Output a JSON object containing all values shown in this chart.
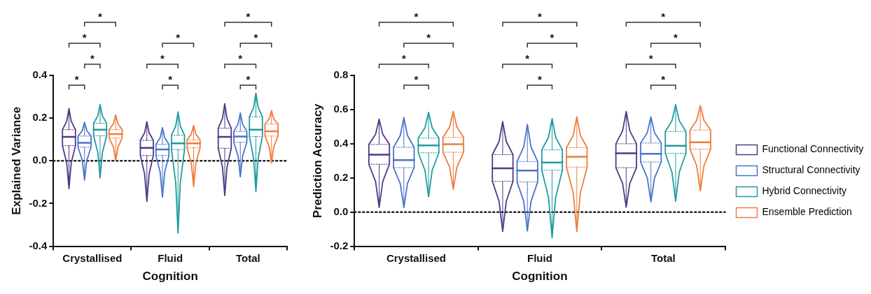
{
  "chart_data": [
    {
      "type": "box",
      "xlabel": "Cognition",
      "ylabel": "Explained Variance",
      "categories": [
        "Crystallised",
        "Fluid",
        "Total"
      ],
      "ylim": [
        -0.4,
        0.4
      ],
      "yticks": [
        {
          "value": -0.4,
          "label": "-0.4"
        },
        {
          "value": -0.2,
          "label": "-0.2"
        },
        {
          "value": 0,
          "label": "0.0"
        },
        {
          "value": 0.2,
          "label": "0.2"
        },
        {
          "value": 0.4,
          "label": "0.4"
        }
      ],
      "ref_lines": [
        {
          "axis": "y",
          "value": 0,
          "line_style": "dotted"
        }
      ],
      "series": [
        {
          "color": "#4f3a86",
          "boxes": [
            {
              "low": -0.13,
              "q1": 0.071,
              "median": 0.112,
              "q3": 0.146,
              "high": 0.245
            },
            {
              "low": -0.19,
              "q1": 0.025,
              "median": 0.061,
              "q3": 0.096,
              "high": 0.183
            },
            {
              "low": -0.162,
              "q1": 0.059,
              "median": 0.112,
              "q3": 0.153,
              "high": 0.267
            }
          ]
        },
        {
          "color": "#4a74c9",
          "boxes": [
            {
              "low": -0.09,
              "q1": 0.064,
              "median": 0.084,
              "q3": 0.116,
              "high": 0.18
            },
            {
              "low": -0.17,
              "q1": 0.025,
              "median": 0.053,
              "q3": 0.077,
              "high": 0.155
            },
            {
              "low": -0.075,
              "q1": 0.087,
              "median": 0.114,
              "q3": 0.138,
              "high": 0.224
            }
          ]
        },
        {
          "color": "#1f9b9e",
          "boxes": [
            {
              "low": -0.08,
              "q1": 0.117,
              "median": 0.146,
              "q3": 0.176,
              "high": 0.263
            },
            {
              "low": -0.338,
              "q1": 0.053,
              "median": 0.082,
              "q3": 0.12,
              "high": 0.229
            },
            {
              "low": -0.144,
              "q1": 0.114,
              "median": 0.146,
              "q3": 0.206,
              "high": 0.317
            }
          ]
        },
        {
          "color": "#f07c3c",
          "boxes": [
            {
              "low": 0.0,
              "q1": 0.107,
              "median": 0.125,
              "q3": 0.146,
              "high": 0.215
            },
            {
              "low": -0.12,
              "q1": 0.061,
              "median": 0.082,
              "q3": 0.098,
              "high": 0.165
            },
            {
              "low": -0.01,
              "q1": 0.116,
              "median": 0.138,
              "q3": 0.172,
              "high": 0.235
            }
          ]
        }
      ],
      "annotations": [
        "*",
        "*",
        "*",
        "*",
        "*",
        "*",
        "*",
        "*",
        "*",
        "*",
        "*"
      ]
    },
    {
      "type": "box",
      "xlabel": "Cognition",
      "ylabel": "Prediction Accuracy",
      "categories": [
        "Crystallised",
        "Fluid",
        "Total"
      ],
      "legend": "right",
      "ylim": [
        -0.2,
        0.8
      ],
      "yticks": [
        {
          "value": -0.2,
          "label": "-0.2"
        },
        {
          "value": 0,
          "label": "0.0"
        },
        {
          "value": 0.2,
          "label": "0.2"
        },
        {
          "value": 0.4,
          "label": "0.4"
        },
        {
          "value": 0.6,
          "label": "0.6"
        },
        {
          "value": 0.8,
          "label": "0.8"
        }
      ],
      "ref_lines": [
        {
          "axis": "y",
          "value": 0,
          "line_style": "dotted"
        }
      ],
      "series": [
        {
          "name": "Functional Connectivity",
          "color": "#4f3a86",
          "boxes": [
            {
              "low": 0.027,
              "q1": 0.28,
              "median": 0.336,
              "q3": 0.396,
              "high": 0.544
            },
            {
              "low": -0.113,
              "q1": 0.18,
              "median": 0.256,
              "q3": 0.336,
              "high": 0.53
            },
            {
              "low": 0.029,
              "q1": 0.26,
              "median": 0.344,
              "q3": 0.4,
              "high": 0.589
            }
          ]
        },
        {
          "name": "Structural Connectivity",
          "color": "#4a74c9",
          "boxes": [
            {
              "low": 0.027,
              "q1": 0.26,
              "median": 0.304,
              "q3": 0.379,
              "high": 0.553
            },
            {
              "low": -0.11,
              "q1": 0.176,
              "median": 0.243,
              "q3": 0.296,
              "high": 0.513
            },
            {
              "low": 0.06,
              "q1": 0.293,
              "median": 0.341,
              "q3": 0.404,
              "high": 0.557
            }
          ]
        },
        {
          "name": "Hybrid Connectivity",
          "color": "#1f9b9e",
          "boxes": [
            {
              "low": 0.09,
              "q1": 0.347,
              "median": 0.39,
              "q3": 0.433,
              "high": 0.584
            },
            {
              "low": -0.15,
              "q1": 0.245,
              "median": 0.29,
              "q3": 0.364,
              "high": 0.547
            },
            {
              "low": 0.064,
              "q1": 0.344,
              "median": 0.388,
              "q3": 0.472,
              "high": 0.629
            }
          ]
        },
        {
          "name": "Ensemble Prediction",
          "color": "#f07c3c",
          "boxes": [
            {
              "low": 0.133,
              "q1": 0.35,
              "median": 0.397,
              "q3": 0.437,
              "high": 0.59
            },
            {
              "low": -0.113,
              "q1": 0.263,
              "median": 0.324,
              "q3": 0.377,
              "high": 0.557
            },
            {
              "low": 0.124,
              "q1": 0.368,
              "median": 0.409,
              "q3": 0.48,
              "high": 0.623
            }
          ]
        }
      ],
      "annotations": [
        "*",
        "*",
        "*",
        "*",
        "*",
        "*",
        "*",
        "*",
        "*",
        "*",
        "*",
        "*"
      ]
    }
  ]
}
